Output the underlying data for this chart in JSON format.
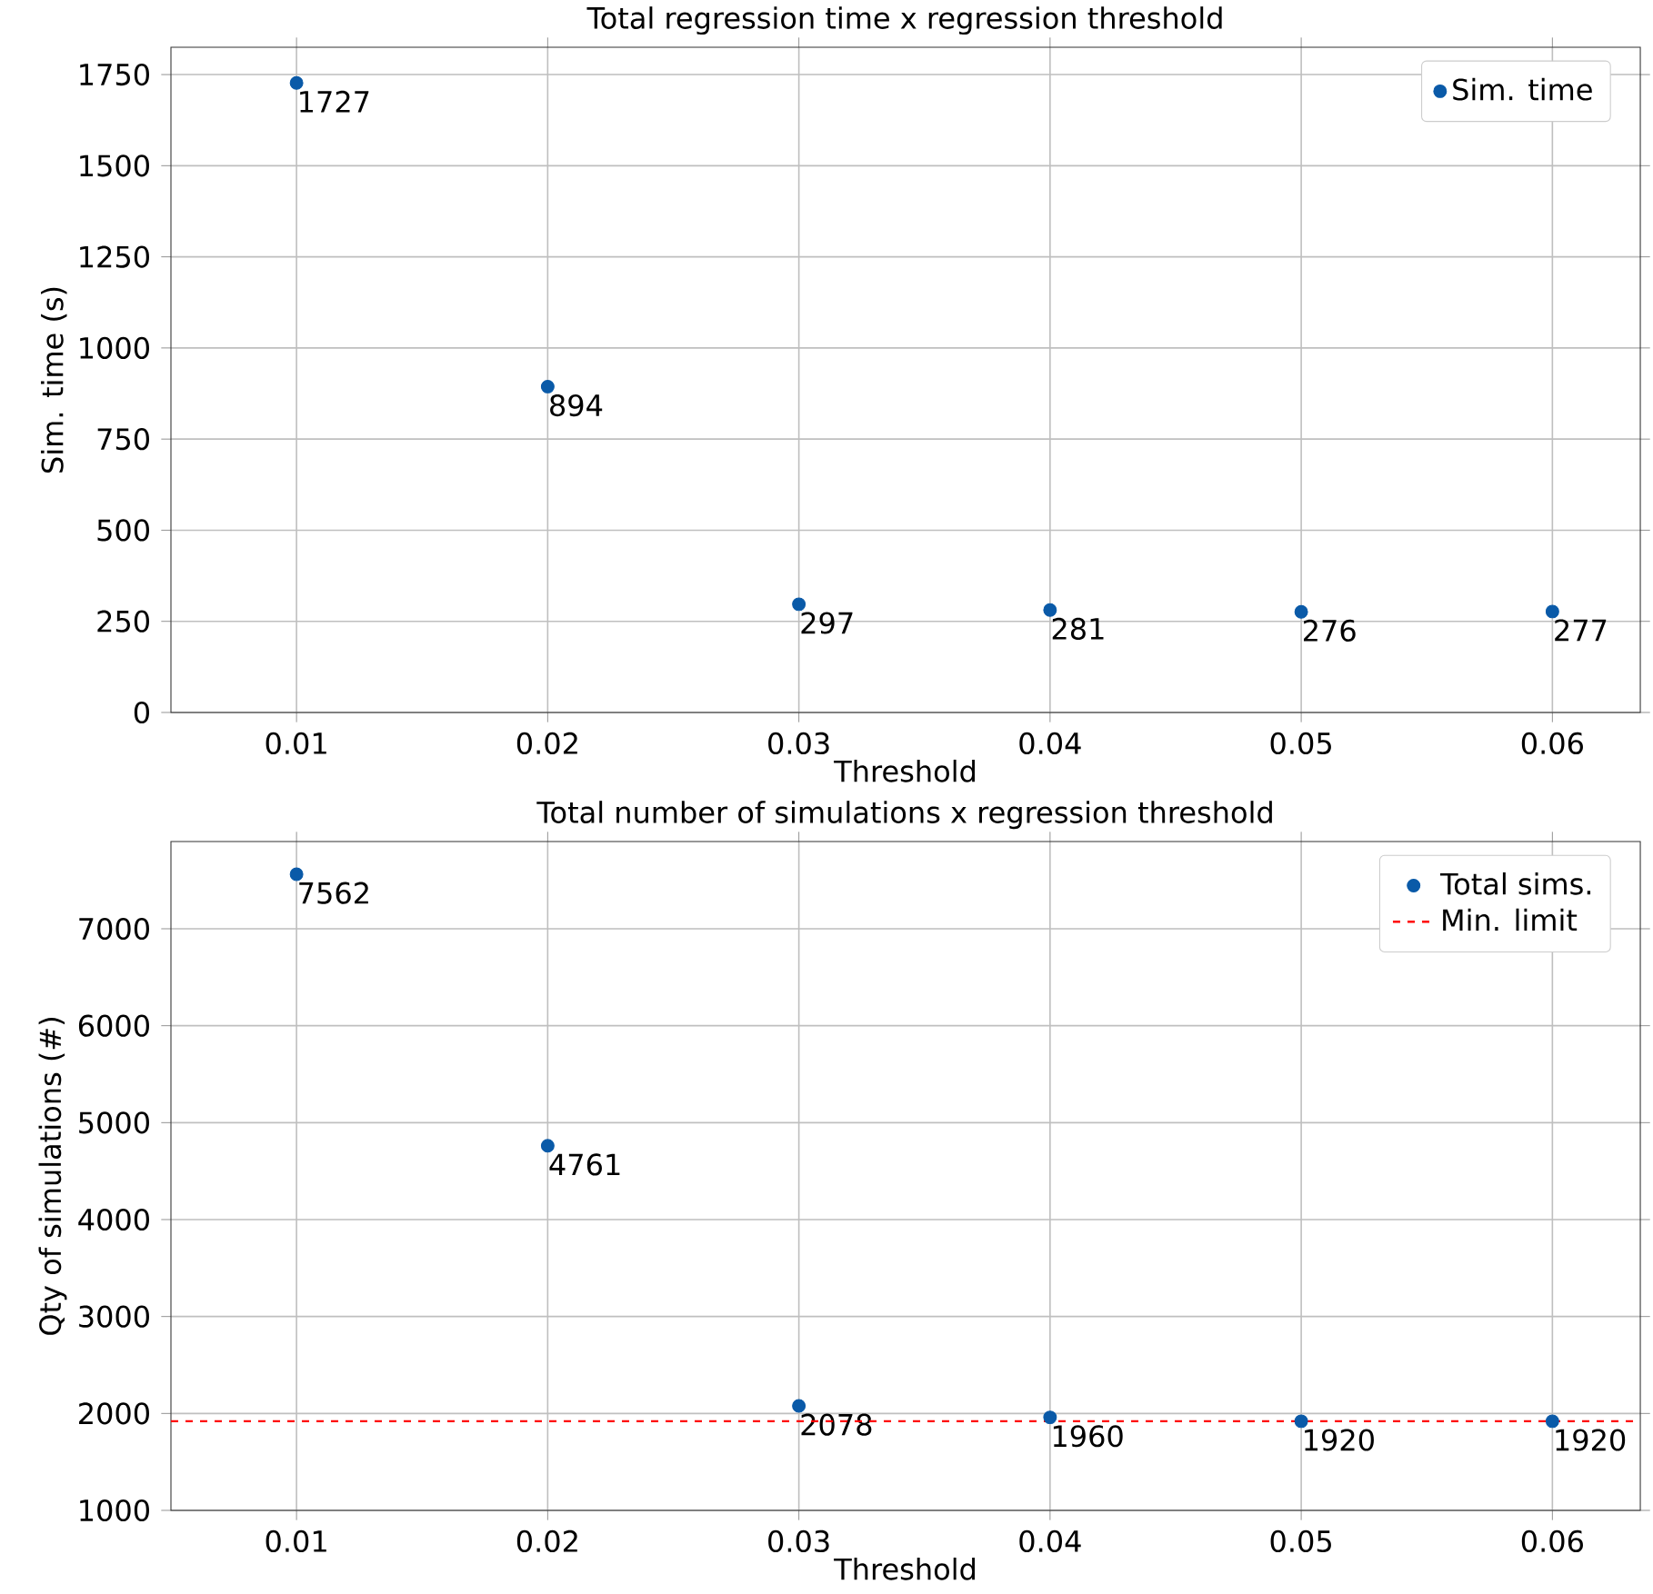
{
  "chart_data": [
    {
      "type": "scatter",
      "title": "Total regression time x regression threshold",
      "xlabel": "Threshold",
      "ylabel": "Sim. time (s)",
      "x": [
        0.01,
        0.02,
        0.03,
        0.04,
        0.05,
        0.06
      ],
      "series": [
        {
          "name": "Sim. time",
          "color": "#0a5aa8",
          "values": [
            1727,
            894,
            297,
            281,
            276,
            277
          ]
        }
      ],
      "xlim": [
        0.005,
        0.0635
      ],
      "ylim": [
        0,
        1825
      ],
      "xticks": [
        0.01,
        0.02,
        0.03,
        0.04,
        0.05,
        0.06
      ],
      "yticks": [
        0,
        250,
        500,
        750,
        1000,
        1250,
        1500,
        1750
      ],
      "data_labels": true,
      "grid": true,
      "legend": "top right"
    },
    {
      "type": "scatter",
      "title": "Total number of simulations x regression threshold",
      "xlabel": "Threshold",
      "ylabel": "Qty of simulations (#)",
      "x": [
        0.01,
        0.02,
        0.03,
        0.04,
        0.05,
        0.06
      ],
      "series": [
        {
          "name": "Total sims.",
          "color": "#0a5aa8",
          "values": [
            7562,
            4761,
            2078,
            1960,
            1920,
            1920
          ]
        }
      ],
      "ref_lines": [
        {
          "axis": "y",
          "value": 1920,
          "label": "Min. limit",
          "color": "#ff0000",
          "line_style": "dashed"
        }
      ],
      "xlim": [
        0.005,
        0.0635
      ],
      "ylim": [
        1000,
        7900
      ],
      "xticks": [
        0.01,
        0.02,
        0.03,
        0.04,
        0.05,
        0.06
      ],
      "yticks": [
        1000,
        2000,
        3000,
        4000,
        5000,
        6000,
        7000
      ],
      "data_labels": true,
      "grid": true,
      "legend": "top right"
    }
  ]
}
